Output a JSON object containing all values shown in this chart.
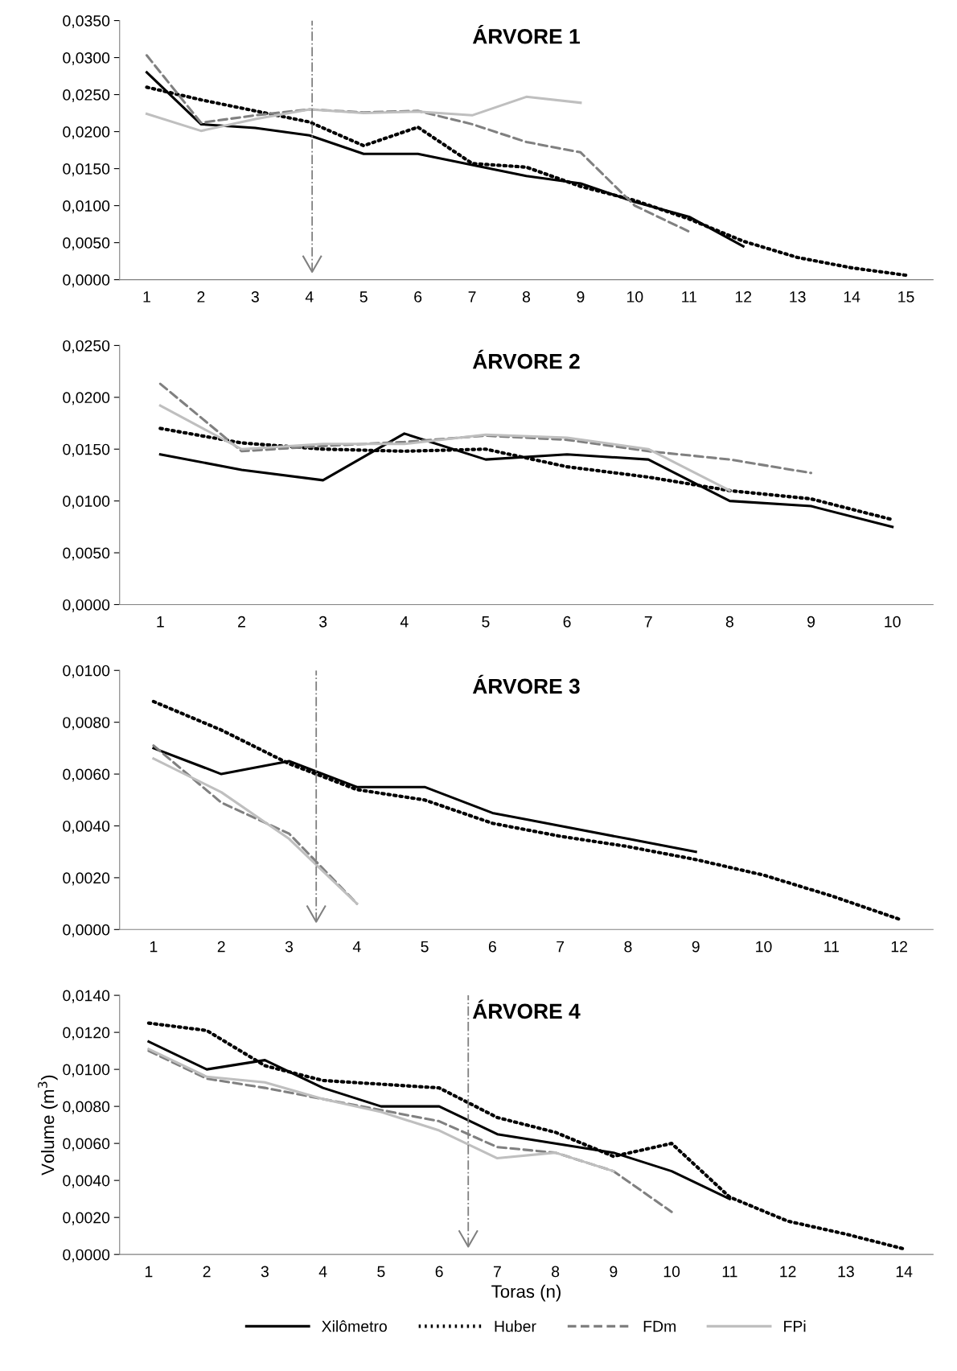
{
  "chart_data": [
    {
      "type": "line",
      "title": "ÁRVORE 1",
      "x": [
        1,
        2,
        3,
        4,
        5,
        6,
        7,
        8,
        9,
        10,
        11,
        12,
        13,
        14,
        15
      ],
      "xlim": [
        0.5,
        15.5
      ],
      "xticks": [
        1,
        2,
        3,
        4,
        5,
        6,
        7,
        8,
        9,
        10,
        11,
        12,
        13,
        14,
        15
      ],
      "ylim": [
        0,
        0.035
      ],
      "yticks": [
        {
          "value": 0,
          "label": "0,0000"
        },
        {
          "value": 0.005,
          "label": "0,0050"
        },
        {
          "value": 0.01,
          "label": "0,0100"
        },
        {
          "value": 0.015,
          "label": "0,0150"
        },
        {
          "value": 0.02,
          "label": "0,0200"
        },
        {
          "value": 0.025,
          "label": "0,0250"
        },
        {
          "value": 0.03,
          "label": "0,0300"
        },
        {
          "value": 0.035,
          "label": "0,0350"
        }
      ],
      "grid": false,
      "ref_lines": [
        {
          "axis": "x",
          "value": 4.05,
          "color": "#808080",
          "line_style": "dashdot"
        }
      ],
      "series": [
        {
          "color": "#000000",
          "line_style": "solid",
          "values": [
            0.028,
            0.021,
            0.0205,
            0.0195,
            0.017,
            0.017,
            0.0155,
            0.014,
            0.013,
            0.0105,
            0.0085,
            0.0045,
            null,
            null,
            null
          ]
        },
        {
          "color": "#000000",
          "line_style": "dotted",
          "values": [
            0.026,
            0.0243,
            0.0228,
            0.0213,
            0.0181,
            0.0206,
            0.0157,
            0.0152,
            0.0126,
            0.0107,
            0.0082,
            0.0052,
            0.003,
            0.0016,
            0.0006
          ]
        },
        {
          "color": "#808080",
          "line_style": "dashed",
          "values": [
            0.0303,
            0.0212,
            0.0222,
            0.023,
            0.0226,
            0.0228,
            0.021,
            0.0186,
            0.0172,
            0.01,
            0.0065,
            null,
            null,
            null,
            null
          ]
        },
        {
          "color": "#bfbfbf",
          "line_style": "solid",
          "values": [
            0.0224,
            0.0201,
            0.0217,
            0.023,
            0.0225,
            0.0227,
            0.0222,
            0.0247,
            0.0239,
            null,
            null,
            null,
            null,
            null,
            null
          ]
        }
      ]
    },
    {
      "type": "line",
      "title": "ÁRVORE 2",
      "x": [
        1,
        2,
        3,
        4,
        5,
        6,
        7,
        8,
        9,
        10
      ],
      "xlim": [
        0.5,
        10.5
      ],
      "xticks": [
        1,
        2,
        3,
        4,
        5,
        6,
        7,
        8,
        9,
        10
      ],
      "ylim": [
        0,
        0.025
      ],
      "yticks": [
        {
          "value": 0,
          "label": "0,0000"
        },
        {
          "value": 0.005,
          "label": "0,0050"
        },
        {
          "value": 0.01,
          "label": "0,0100"
        },
        {
          "value": 0.015,
          "label": "0,0150"
        },
        {
          "value": 0.02,
          "label": "0,0200"
        },
        {
          "value": 0.025,
          "label": "0,0250"
        }
      ],
      "grid": false,
      "series": [
        {
          "color": "#000000",
          "line_style": "solid",
          "values": [
            0.0145,
            0.013,
            0.012,
            0.0165,
            0.014,
            0.0145,
            0.014,
            0.01,
            0.0095,
            0.0075
          ]
        },
        {
          "color": "#000000",
          "line_style": "dotted",
          "values": [
            0.017,
            0.0156,
            0.015,
            0.0148,
            0.015,
            0.0133,
            0.0123,
            0.011,
            0.0102,
            0.0082
          ]
        },
        {
          "color": "#808080",
          "line_style": "dashed",
          "values": [
            0.0213,
            0.0148,
            0.0153,
            0.0157,
            0.0163,
            0.0159,
            0.0148,
            0.014,
            0.0127,
            null
          ]
        },
        {
          "color": "#bfbfbf",
          "line_style": "solid",
          "values": [
            0.0192,
            0.015,
            0.0155,
            0.0155,
            0.0164,
            0.0161,
            0.015,
            0.011,
            null,
            null
          ]
        }
      ]
    },
    {
      "type": "line",
      "title": "ÁRVORE 3",
      "x": [
        1,
        2,
        3,
        4,
        5,
        6,
        7,
        8,
        9,
        10,
        11,
        12
      ],
      "xlim": [
        0.5,
        12.5
      ],
      "xticks": [
        1,
        2,
        3,
        4,
        5,
        6,
        7,
        8,
        9,
        10,
        11,
        12
      ],
      "ylim": [
        0,
        0.01
      ],
      "yticks": [
        {
          "value": 0,
          "label": "0,0000"
        },
        {
          "value": 0.002,
          "label": "0,0020"
        },
        {
          "value": 0.004,
          "label": "0,0040"
        },
        {
          "value": 0.006,
          "label": "0,0060"
        },
        {
          "value": 0.008,
          "label": "0,0080"
        },
        {
          "value": 0.01,
          "label": "0,0100"
        }
      ],
      "grid": false,
      "ref_lines": [
        {
          "axis": "x",
          "value": 3.4,
          "color": "#808080",
          "line_style": "dashdot"
        }
      ],
      "series": [
        {
          "color": "#000000",
          "line_style": "solid",
          "values": [
            0.007,
            0.006,
            0.0065,
            0.0055,
            0.0055,
            0.0045,
            0.004,
            0.0035,
            0.003,
            null,
            null,
            null
          ]
        },
        {
          "color": "#000000",
          "line_style": "dotted",
          "values": [
            0.0088,
            0.0077,
            0.0064,
            0.0054,
            0.005,
            0.0041,
            0.0036,
            0.0032,
            0.0027,
            0.0021,
            0.0013,
            0.0004
          ]
        },
        {
          "color": "#808080",
          "line_style": "dashed",
          "values": [
            0.0071,
            0.0049,
            0.0037,
            0.001,
            null,
            null,
            null,
            null,
            null,
            null,
            null,
            null
          ]
        },
        {
          "color": "#bfbfbf",
          "line_style": "solid",
          "values": [
            0.0066,
            0.0053,
            0.0035,
            0.001,
            null,
            null,
            null,
            null,
            null,
            null,
            null,
            null
          ]
        }
      ]
    },
    {
      "type": "line",
      "title": "ÁRVORE 4",
      "xlabel": "Toras (n)",
      "ylabel": "Volume (m$^{3}$)",
      "x": [
        1,
        2,
        3,
        4,
        5,
        6,
        7,
        8,
        9,
        10,
        11,
        12,
        13,
        14
      ],
      "xlim": [
        0.5,
        14.5
      ],
      "xticks": [
        1,
        2,
        3,
        4,
        5,
        6,
        7,
        8,
        9,
        10,
        11,
        12,
        13,
        14
      ],
      "ylim": [
        0,
        0.014
      ],
      "yticks": [
        {
          "value": 0,
          "label": "0,0000"
        },
        {
          "value": 0.002,
          "label": "0,0020"
        },
        {
          "value": 0.004,
          "label": "0,0040"
        },
        {
          "value": 0.006,
          "label": "0,0060"
        },
        {
          "value": 0.008,
          "label": "0,0080"
        },
        {
          "value": 0.01,
          "label": "0,0100"
        },
        {
          "value": 0.012,
          "label": "0,0120"
        },
        {
          "value": 0.014,
          "label": "0,0140"
        }
      ],
      "grid": false,
      "legend": "bottom",
      "ref_lines": [
        {
          "axis": "x",
          "value": 6.5,
          "color": "#808080",
          "line_style": "dashdot"
        }
      ],
      "series": [
        {
          "name": "Xilômetro",
          "color": "#000000",
          "line_style": "solid",
          "values": [
            0.0115,
            0.01,
            0.0105,
            0.009,
            0.008,
            0.008,
            0.0065,
            0.006,
            0.0055,
            0.0045,
            0.003,
            null,
            null,
            null
          ]
        },
        {
          "name": "Huber",
          "color": "#000000",
          "line_style": "dotted",
          "values": [
            0.0125,
            0.0121,
            0.0102,
            0.0094,
            0.0092,
            0.009,
            0.0074,
            0.0066,
            0.0053,
            0.006,
            0.0031,
            0.0018,
            0.0011,
            0.0003
          ]
        },
        {
          "name": "FDm",
          "color": "#808080",
          "line_style": "dashed",
          "values": [
            0.011,
            0.0095,
            0.009,
            0.0084,
            0.0078,
            0.0072,
            0.0058,
            0.0055,
            0.0045,
            0.0023,
            null,
            null,
            null,
            null
          ]
        },
        {
          "name": "FPi",
          "color": "#bfbfbf",
          "line_style": "solid",
          "values": [
            0.0111,
            0.0096,
            0.0093,
            0.0084,
            0.0077,
            0.0067,
            0.0052,
            0.0055,
            0.0045,
            null,
            null,
            null,
            null,
            null
          ]
        }
      ]
    }
  ]
}
